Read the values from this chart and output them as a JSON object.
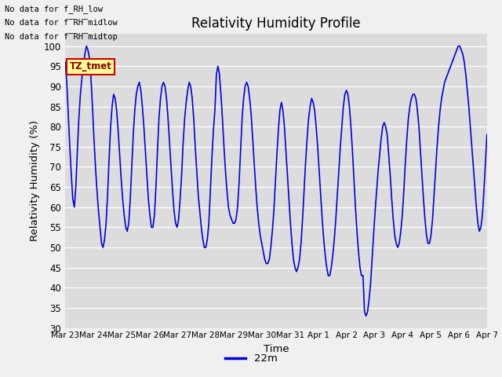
{
  "title": "Relativity Humidity Profile",
  "ylabel": "Relativity Humidity (%)",
  "xlabel": "Time",
  "ylim": [
    30,
    103
  ],
  "yticks": [
    30,
    35,
    40,
    45,
    50,
    55,
    60,
    65,
    70,
    75,
    80,
    85,
    90,
    95,
    100
  ],
  "line_color": "#0000dd",
  "line_width": 1.2,
  "legend_label": "22m",
  "bg_color": "#dcdcdc",
  "annotations": [
    "No data for f_RH_low",
    "No data for f̅RH̅midlow",
    "No data for f̅RH̅midtop"
  ],
  "tz_label": "TZ_tmet",
  "xticklabels": [
    "Mar 23",
    "Mar 24",
    "Mar 25",
    "Mar 26",
    "Mar 27",
    "Mar 28",
    "Mar 29",
    "Mar 30",
    "Mar 31",
    "Apr 1",
    "Apr 2",
    "Apr 3",
    "Apr 4",
    "Apr 5",
    "Apr 6",
    "Apr 7"
  ],
  "rh_values": [
    96,
    91,
    83,
    75,
    68,
    62,
    60,
    65,
    74,
    82,
    88,
    92,
    95,
    98,
    100,
    99,
    97,
    92,
    85,
    77,
    70,
    64,
    59,
    55,
    51,
    50,
    52,
    56,
    63,
    72,
    80,
    85,
    88,
    87,
    84,
    79,
    73,
    67,
    62,
    58,
    55,
    54,
    56,
    62,
    70,
    78,
    84,
    88,
    90,
    91,
    89,
    85,
    80,
    74,
    68,
    62,
    58,
    55,
    55,
    58,
    65,
    74,
    82,
    87,
    90,
    91,
    90,
    87,
    82,
    76,
    70,
    64,
    59,
    56,
    55,
    57,
    62,
    68,
    76,
    82,
    86,
    89,
    91,
    90,
    87,
    82,
    75,
    69,
    63,
    59,
    55,
    52,
    50,
    50,
    52,
    56,
    64,
    72,
    79,
    84,
    93,
    95,
    93,
    88,
    82,
    75,
    69,
    64,
    60,
    58,
    57,
    56,
    56,
    57,
    60,
    66,
    74,
    82,
    87,
    90,
    91,
    90,
    87,
    83,
    77,
    71,
    65,
    60,
    56,
    53,
    51,
    49,
    47,
    46,
    46,
    47,
    50,
    54,
    59,
    66,
    73,
    79,
    84,
    86,
    84,
    80,
    74,
    68,
    62,
    56,
    51,
    47,
    45,
    44,
    45,
    47,
    51,
    57,
    64,
    71,
    77,
    82,
    85,
    87,
    86,
    84,
    80,
    75,
    69,
    63,
    57,
    52,
    48,
    45,
    43,
    43,
    45,
    48,
    52,
    57,
    63,
    69,
    75,
    80,
    85,
    88,
    89,
    88,
    85,
    80,
    74,
    67,
    60,
    54,
    49,
    45,
    43,
    43,
    34,
    33,
    34,
    37,
    41,
    47,
    53,
    59,
    64,
    69,
    73,
    77,
    80,
    81,
    80,
    78,
    73,
    68,
    62,
    57,
    53,
    51,
    50,
    51,
    54,
    58,
    64,
    71,
    77,
    82,
    85,
    87,
    88,
    88,
    87,
    84,
    80,
    74,
    68,
    62,
    57,
    53,
    51,
    51,
    53,
    57,
    63,
    69,
    75,
    80,
    84,
    87,
    89,
    91,
    92,
    93,
    94,
    95,
    96,
    97,
    98,
    99,
    100,
    100,
    99,
    98,
    96,
    93,
    89,
    85,
    80,
    75,
    70,
    65,
    60,
    56,
    54,
    55,
    58,
    64,
    71,
    78
  ]
}
